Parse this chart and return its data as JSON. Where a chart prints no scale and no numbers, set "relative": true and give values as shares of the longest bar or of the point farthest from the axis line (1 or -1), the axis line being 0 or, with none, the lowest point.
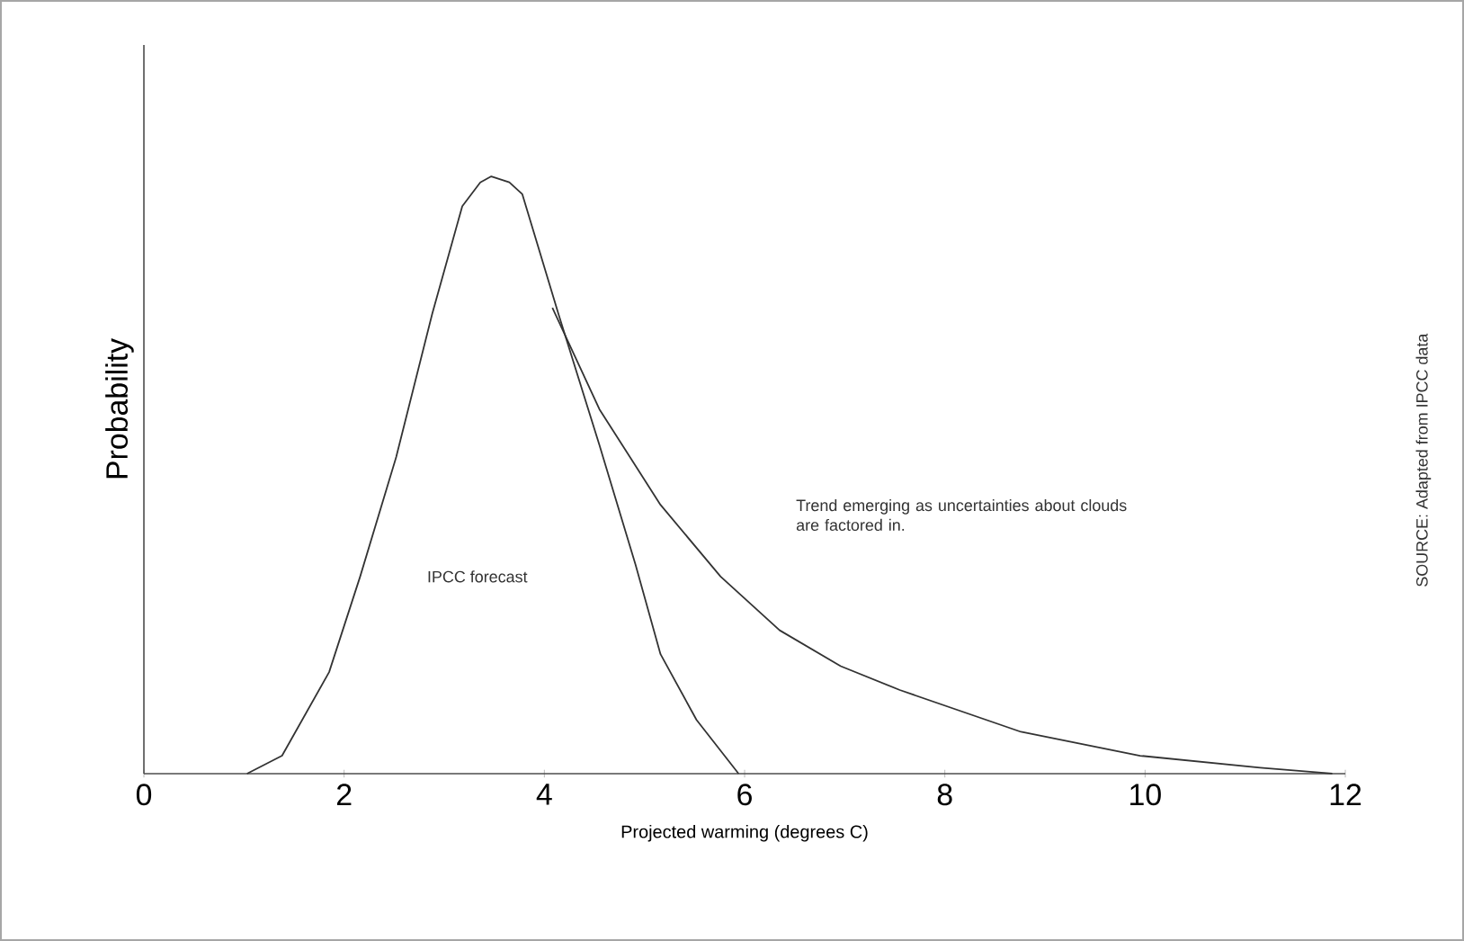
{
  "chart_data": {
    "type": "line",
    "relative": true,
    "xlabel": "Projected warming (degrees C)",
    "ylabel": "Probability",
    "xlim": [
      0,
      12
    ],
    "xticks": [
      0,
      2,
      4,
      6,
      8,
      10,
      12
    ],
    "annotations": [
      "Trend emerging as uncertainties about clouds are factored in.",
      "IPCC forecast",
      "SOURCE: Adapted from IPCC data"
    ],
    "series": [
      {
        "color": "#333333",
        "x": [
          1.03,
          1.38,
          1.85,
          2.16,
          2.52,
          2.88,
          3.18,
          3.36,
          3.47,
          3.65,
          3.78,
          4.14,
          4.55,
          4.91,
          5.16,
          5.52,
          5.94
        ],
        "values": [
          0,
          0.03,
          0.17,
          0.33,
          0.53,
          0.77,
          0.95,
          0.99,
          1.0,
          0.99,
          0.97,
          0.77,
          0.55,
          0.35,
          0.2,
          0.09,
          0
        ]
      },
      {
        "color": "#333333",
        "x": [
          4.08,
          4.55,
          5.16,
          5.76,
          6.35,
          6.96,
          7.55,
          8.76,
          9.95,
          11.15,
          11.87
        ],
        "values": [
          0.78,
          0.61,
          0.45,
          0.33,
          0.24,
          0.18,
          0.14,
          0.07,
          0.03,
          0.01,
          0
        ]
      }
    ]
  }
}
